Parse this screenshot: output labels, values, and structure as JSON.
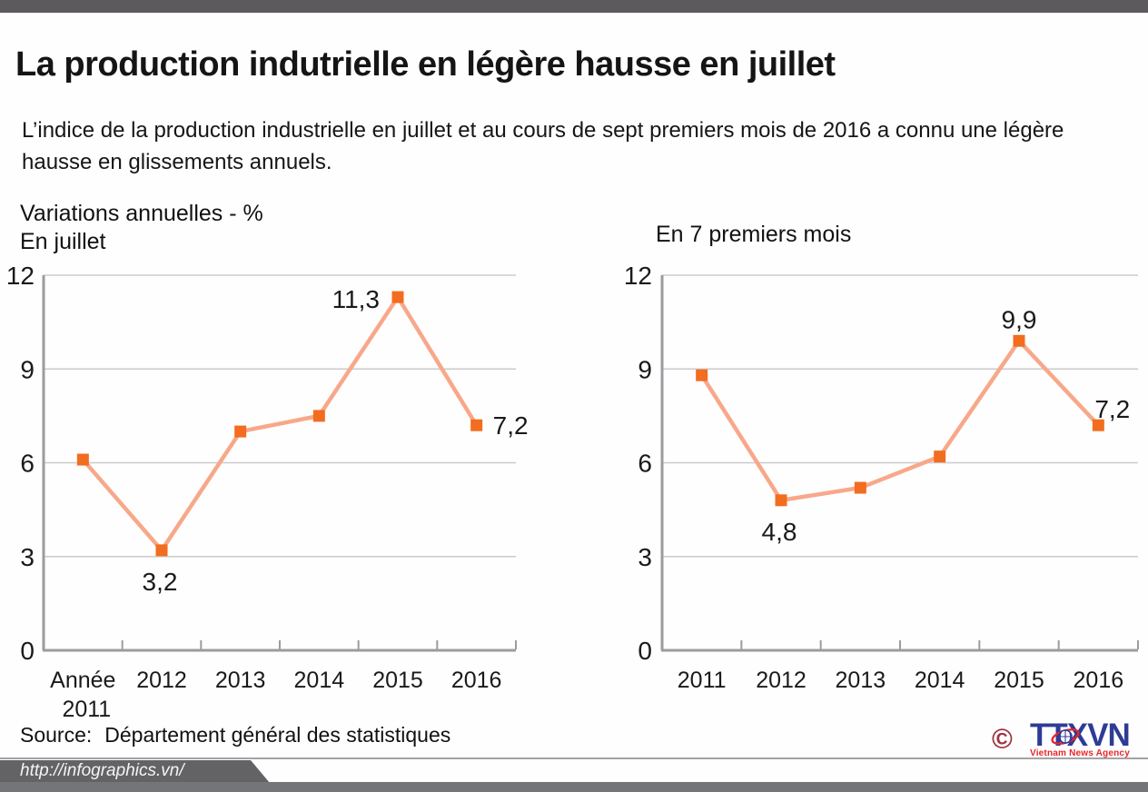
{
  "page": {
    "title": "La production indutrielle en légère hausse en juillet",
    "subtitle": "L’indice de la production industrielle en juillet et au cours de sept premiers mois de 2016 a connu une légère hausse en glissements annuels.",
    "axis_unit_label": "Variations annuelles - %",
    "source_label": "Source:",
    "source_value": "Département général des statistiques",
    "footer_url": "http://infographics.vn/"
  },
  "logo": {
    "copyright": "©",
    "text": "TTXVN",
    "subtext": "Vietnam News Agency",
    "text_color": "#2e3b96",
    "subtext_color": "#e8252b",
    "copyright_color": "#9e3340"
  },
  "colors": {
    "line": "#f8a88a",
    "marker": "#f26d1f",
    "grid": "#cbcbce",
    "axis": "#9c9ca0",
    "text": "#1a1a1a",
    "top_bar": "#5c5a5d",
    "footer": "#636366"
  },
  "chart_data": [
    {
      "type": "line",
      "title": "En juillet",
      "categories": [
        "Année 2011",
        "2012",
        "2013",
        "2014",
        "2015",
        "2016"
      ],
      "x_tick_labels": [
        [
          "Année",
          "2011"
        ],
        [
          "2012"
        ],
        [
          "2013"
        ],
        [
          "2014"
        ],
        [
          "2015"
        ],
        [
          "2016"
        ]
      ],
      "values": [
        6.1,
        3.2,
        7.0,
        7.5,
        11.3,
        7.2
      ],
      "point_labels": [
        null,
        "3,2",
        null,
        null,
        "11,3",
        "7,2"
      ],
      "point_label_pos": [
        null,
        "below",
        null,
        null,
        "left",
        "right"
      ],
      "ylabel": "Variations annuelles - %",
      "ylim": [
        0,
        12
      ],
      "yticks": [
        0,
        3,
        6,
        9,
        12
      ],
      "grid": true,
      "legend": false
    },
    {
      "type": "line",
      "title": "En 7 premiers mois",
      "categories": [
        "2011",
        "2012",
        "2013",
        "2014",
        "2015",
        "2016"
      ],
      "x_tick_labels": [
        [
          "2011"
        ],
        [
          "2012"
        ],
        [
          "2013"
        ],
        [
          "2014"
        ],
        [
          "2015"
        ],
        [
          "2016"
        ]
      ],
      "values": [
        8.8,
        4.8,
        5.2,
        6.2,
        9.9,
        7.2
      ],
      "point_labels": [
        null,
        "4,8",
        null,
        null,
        "9,9",
        "7,2"
      ],
      "point_label_pos": [
        null,
        "below",
        null,
        null,
        "above",
        "above-start"
      ],
      "ylabel": "Variations annuelles - %",
      "ylim": [
        0,
        12
      ],
      "yticks": [
        0,
        3,
        6,
        9,
        12
      ],
      "grid": true,
      "legend": false
    }
  ]
}
